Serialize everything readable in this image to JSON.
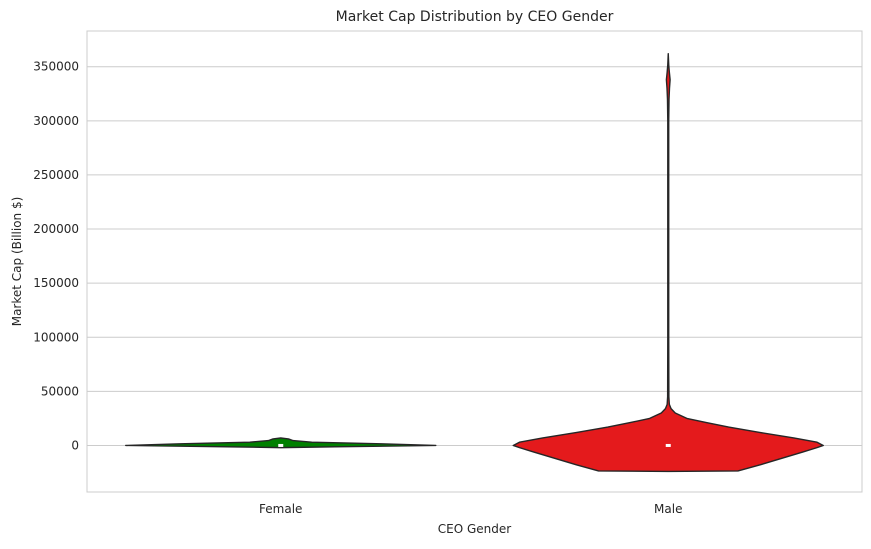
{
  "chart_data": {
    "type": "violin",
    "title": "Market Cap Distribution by CEO Gender",
    "xlabel": "CEO Gender",
    "ylabel": "Market Cap (Billion $)",
    "ylim": [
      -43000,
      383000
    ],
    "yticks": [
      0,
      50000,
      100000,
      150000,
      200000,
      250000,
      300000,
      350000
    ],
    "yticklabels": [
      "0",
      "50000",
      "100000",
      "150000",
      "200000",
      "250000",
      "300000",
      "350000"
    ],
    "grid": "horizontal",
    "categories": [
      "Female",
      "Male"
    ],
    "colors": {
      "Female": "#008000",
      "Male": "#e41a1c",
      "outline": "#262626",
      "grid": "#cccccc"
    },
    "violins": [
      {
        "category": "Female",
        "profile": [
          [
            -2000,
            0.0
          ],
          [
            -1200,
            0.35
          ],
          [
            0,
            1.0
          ],
          [
            1500,
            0.65
          ],
          [
            3000,
            0.2
          ],
          [
            4500,
            0.08
          ],
          [
            6000,
            0.05
          ],
          [
            7000,
            0.0
          ]
        ],
        "median": 0
      },
      {
        "category": "Male",
        "profile": [
          [
            -24000,
            0.0
          ],
          [
            -23500,
            0.45
          ],
          [
            -18000,
            0.59
          ],
          [
            -12000,
            0.73
          ],
          [
            -6000,
            0.87
          ],
          [
            -2000,
            0.96
          ],
          [
            0,
            1.0
          ],
          [
            3000,
            0.96
          ],
          [
            7000,
            0.81
          ],
          [
            12000,
            0.59
          ],
          [
            17000,
            0.39
          ],
          [
            21000,
            0.25
          ],
          [
            25000,
            0.12
          ],
          [
            30000,
            0.045
          ],
          [
            34000,
            0.018
          ],
          [
            38000,
            0.007
          ],
          [
            45000,
            0.004
          ],
          [
            100000,
            0.003
          ],
          [
            300000,
            0.003
          ],
          [
            320000,
            0.005
          ],
          [
            330000,
            0.008
          ],
          [
            338000,
            0.012
          ],
          [
            345000,
            0.007
          ],
          [
            352000,
            0.003
          ],
          [
            362000,
            0.0
          ]
        ],
        "median": 0
      }
    ]
  }
}
